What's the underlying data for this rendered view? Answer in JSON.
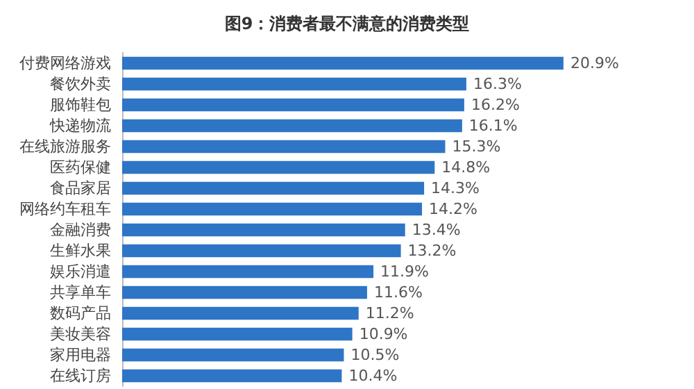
{
  "chart_data": {
    "type": "bar",
    "orientation": "horizontal",
    "title": "图9：消费者最不满意的消费类型",
    "categories": [
      "付费网络游戏",
      "餐饮外卖",
      "服饰鞋包",
      "快递物流",
      "在线旅游服务",
      "医药保健",
      "食品家居",
      "网络约车租车",
      "金融消费",
      "生鲜水果",
      "娱乐消遣",
      "共享单车",
      "数码产品",
      "美妆美容",
      "家用电器",
      "在线订房"
    ],
    "values": [
      20.9,
      16.3,
      16.2,
      16.1,
      15.3,
      14.8,
      14.3,
      14.2,
      13.4,
      13.2,
      11.9,
      11.6,
      11.2,
      10.9,
      10.5,
      10.4
    ],
    "value_labels": [
      "20.9%",
      "16.3%",
      "16.2%",
      "16.1%",
      "15.3%",
      "14.8%",
      "14.3%",
      "14.2%",
      "13.4%",
      "13.2%",
      "11.9%",
      "11.6%",
      "11.2%",
      "10.9%",
      "10.5%",
      "10.4%"
    ],
    "color": "#2e75c6",
    "grid": false
  }
}
